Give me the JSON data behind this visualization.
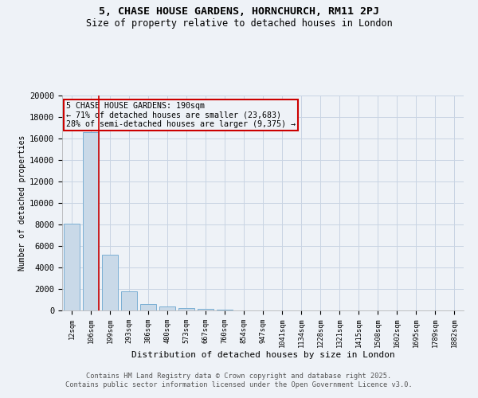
{
  "title_line1": "5, CHASE HOUSE GARDENS, HORNCHURCH, RM11 2PJ",
  "title_line2": "Size of property relative to detached houses in London",
  "xlabel": "Distribution of detached houses by size in London",
  "ylabel": "Number of detached properties",
  "categories": [
    "12sqm",
    "106sqm",
    "199sqm",
    "293sqm",
    "386sqm",
    "480sqm",
    "573sqm",
    "667sqm",
    "760sqm",
    "854sqm",
    "947sqm",
    "1041sqm",
    "1134sqm",
    "1228sqm",
    "1321sqm",
    "1415sqm",
    "1508sqm",
    "1602sqm",
    "1695sqm",
    "1789sqm",
    "1882sqm"
  ],
  "values": [
    8100,
    16600,
    5200,
    1750,
    600,
    350,
    220,
    170,
    110,
    0,
    0,
    0,
    0,
    0,
    0,
    0,
    0,
    0,
    0,
    0,
    0
  ],
  "bar_color": "#c9d9e8",
  "bar_edge_color": "#7bafd4",
  "grid_color": "#c8d4e3",
  "vline_color": "#cc0000",
  "vline_x_index": 1.4,
  "annotation_title": "5 CHASE HOUSE GARDENS: 190sqm",
  "annotation_line1": "← 71% of detached houses are smaller (23,683)",
  "annotation_line2": "28% of semi-detached houses are larger (9,375) →",
  "annotation_box_color": "#cc0000",
  "ylim": [
    0,
    20000
  ],
  "yticks": [
    0,
    2000,
    4000,
    6000,
    8000,
    10000,
    12000,
    14000,
    16000,
    18000,
    20000
  ],
  "footer_line1": "Contains HM Land Registry data © Crown copyright and database right 2025.",
  "footer_line2": "Contains public sector information licensed under the Open Government Licence v3.0.",
  "background_color": "#eef2f7"
}
